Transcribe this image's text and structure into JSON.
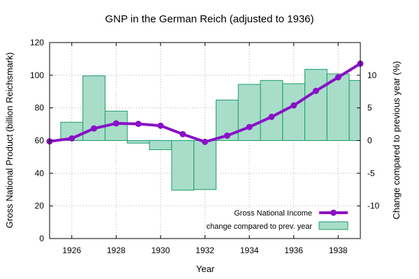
{
  "chart_data": {
    "type": "bar+line",
    "title": "GNP in the German Reich (adjusted to 1936)",
    "xlabel": "Year",
    "ylabel": "Gross National Product (billion Reichsmark)",
    "y2label": "Change compared to previous year (%)",
    "xlim": [
      1925,
      1939
    ],
    "ylim": [
      0,
      120
    ],
    "y2lim": [
      -15,
      15
    ],
    "x_ticks": [
      1926,
      1928,
      1930,
      1932,
      1934,
      1936,
      1938
    ],
    "y_ticks": [
      0,
      20,
      40,
      60,
      80,
      100,
      120
    ],
    "y2_ticks": [
      -10,
      -5,
      0,
      5,
      10
    ],
    "grid": true,
    "legend_position": "bottom-right",
    "series": [
      {
        "name": "Gross National Income",
        "kind": "line",
        "axis": "left",
        "color": "#8a10c8",
        "x": [
          1925,
          1926,
          1927,
          1928,
          1929,
          1930,
          1931,
          1932,
          1933,
          1934,
          1935,
          1936,
          1937,
          1938,
          1939
        ],
        "values": [
          59.5,
          61.3,
          67.4,
          70.5,
          70.2,
          69.1,
          63.9,
          59.2,
          63.0,
          68.3,
          74.5,
          81.5,
          90.4,
          98.7,
          107.1
        ]
      },
      {
        "name": "change compared to prev. year",
        "kind": "bar",
        "axis": "right",
        "fill": "#a8ddc9",
        "stroke": "#1d9c6b",
        "x": [
          1926,
          1927,
          1928,
          1929,
          1930,
          1931,
          1932,
          1933,
          1934,
          1935,
          1936,
          1937,
          1938,
          1939
        ],
        "values": [
          2.8,
          9.9,
          4.5,
          -0.4,
          -1.4,
          -7.6,
          -7.5,
          6.2,
          8.6,
          9.2,
          8.7,
          10.9,
          10.2,
          9.2
        ]
      }
    ]
  }
}
